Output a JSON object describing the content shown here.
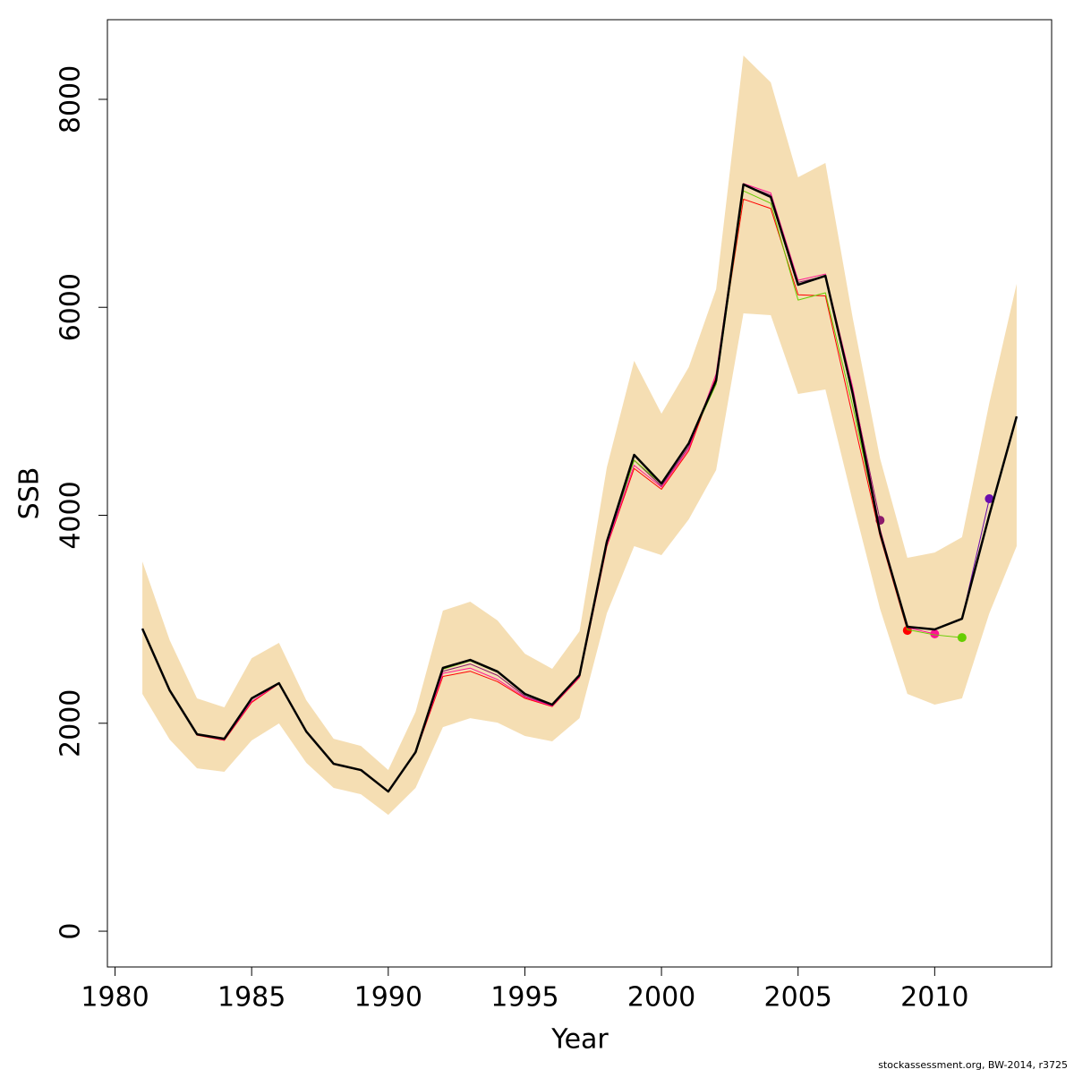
{
  "chart_data": {
    "type": "line",
    "xlabel": "Year",
    "ylabel": "SSB",
    "footnote": "stockassessment.org, BW-2014, r3725",
    "x": [
      1981,
      1982,
      1983,
      1984,
      1985,
      1986,
      1987,
      1988,
      1989,
      1990,
      1991,
      1992,
      1993,
      1994,
      1995,
      1996,
      1997,
      1998,
      1999,
      2000,
      2001,
      2002,
      2003,
      2004,
      2005,
      2006,
      2007,
      2008,
      2009,
      2010,
      2011,
      2012,
      2013
    ],
    "band": {
      "color": "#F5DEB3",
      "upper": [
        3556,
        2799,
        2239,
        2153,
        2626,
        2773,
        2222,
        1851,
        1782,
        1550,
        2110,
        3083,
        3169,
        2988,
        2669,
        2523,
        2885,
        4461,
        5485,
        4977,
        5425,
        6174,
        8422,
        8163,
        7250,
        7388,
        5898,
        4547,
        3591,
        3642,
        3789,
        5081,
        6226
      ],
      "lower": [
        2282,
        1843,
        1567,
        1533,
        1834,
        1998,
        1619,
        1378,
        1317,
        1119,
        1378,
        1963,
        2049,
        2006,
        1877,
        1826,
        2049,
        3057,
        3703,
        3617,
        3961,
        4435,
        5942,
        5924,
        5167,
        5210,
        4133,
        3100,
        2282,
        2179,
        2239,
        3057,
        3703
      ]
    },
    "series": [
      {
        "color": "#8B1A6B",
        "width": 1,
        "marker": true,
        "values": [
          2910,
          2316,
          1894,
          1851,
          2239,
          2385,
          1920,
          1610,
          1550,
          1343,
          1722,
          2500,
          2570,
          2460,
          2260,
          2170,
          2450,
          3720,
          4530,
          4280,
          4660,
          5320,
          7180,
          7080,
          6240,
          6300,
          5200,
          3952,
          null,
          null,
          null,
          null,
          null
        ]
      },
      {
        "color": "#FF0000",
        "width": 1,
        "marker": true,
        "values": [
          2905,
          2310,
          1885,
          1835,
          2200,
          2380,
          1915,
          1605,
          1545,
          1340,
          1715,
          2450,
          2500,
          2400,
          2240,
          2160,
          2440,
          3700,
          4450,
          4250,
          4620,
          5330,
          7040,
          6950,
          6120,
          6110,
          4950,
          3800,
          2893,
          null,
          null,
          null,
          null
        ]
      },
      {
        "color": "#FF1493",
        "width": 1,
        "marker": true,
        "values": [
          2905,
          2312,
          1888,
          1840,
          2210,
          2382,
          1918,
          1608,
          1548,
          1342,
          1718,
          2480,
          2530,
          2420,
          2250,
          2165,
          2445,
          3710,
          4480,
          4270,
          4640,
          5360,
          7190,
          7100,
          6260,
          6320,
          5230,
          3870,
          2920,
          2859,
          null,
          null,
          null
        ]
      },
      {
        "color": "#66CD00",
        "width": 1,
        "marker": true,
        "values": [
          2910,
          2315,
          1893,
          1850,
          2235,
          2384,
          1920,
          1610,
          1550,
          1343,
          1720,
          2520,
          2600,
          2490,
          2280,
          2178,
          2460,
          3740,
          4530,
          4300,
          4690,
          5260,
          7120,
          7000,
          6070,
          6140,
          5050,
          3830,
          2900,
          2850,
          2824,
          null,
          null
        ]
      },
      {
        "color": "#6A0DAD",
        "width": 1,
        "marker": true,
        "values": [
          2910,
          2316,
          1894,
          1851,
          2239,
          2385,
          1920,
          1610,
          1550,
          1343,
          1722,
          2530,
          2608,
          2496,
          2282,
          2179,
          2463,
          3746,
          4581,
          4305,
          4693,
          5296,
          7182,
          7061,
          6217,
          6303,
          5167,
          3832,
          2928,
          2902,
          3005,
          4159,
          null
        ]
      },
      {
        "color": "#000000",
        "width": 2.5,
        "marker": false,
        "values": [
          2910,
          2316,
          1894,
          1851,
          2239,
          2385,
          1920,
          1610,
          1550,
          1343,
          1722,
          2532,
          2609,
          2497,
          2282,
          2179,
          2463,
          3746,
          4581,
          4305,
          4693,
          5296,
          7182,
          7061,
          6217,
          6303,
          5167,
          3832,
          2928,
          2902,
          3005,
          4004,
          4951
        ]
      }
    ],
    "xlim": [
      1979.72,
      2014.28
    ],
    "ylim": [
      -344,
      8766
    ],
    "xticks": [
      1980,
      1985,
      1990,
      1995,
      2000,
      2005,
      2010
    ],
    "yticks": [
      0,
      2000,
      4000,
      6000,
      8000
    ]
  }
}
